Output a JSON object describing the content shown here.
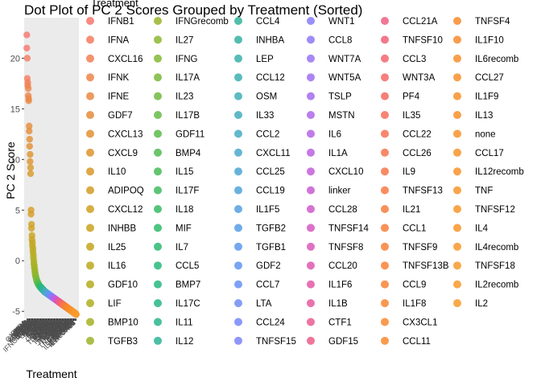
{
  "chart_data": {
    "type": "scatter",
    "title": "Dot Plot of PC 2 Scores Grouped by Treatment (Sorted)",
    "xlabel": "Treatment",
    "ylabel": "PC 2 Score",
    "ylim": [
      -5.7,
      24
    ],
    "yticks": [
      -5,
      0,
      5,
      10,
      15,
      20
    ],
    "grid": false,
    "legend_title": "Treatment",
    "legend_position": "right",
    "visible_x_tick_labels": [
      "IFNB1",
      "CXCL16",
      "IFNE",
      "IFNA"
    ],
    "series": [
      {
        "name": "IFNB1",
        "color": "#F8766D",
        "values": [
          22.3,
          21.0
        ]
      },
      {
        "name": "IFNA",
        "color": "#F67C5F",
        "values": [
          20.0,
          18.0
        ]
      },
      {
        "name": "CXCL16",
        "color": "#F27F54",
        "values": [
          17.6,
          17.3
        ]
      },
      {
        "name": "IFNK",
        "color": "#EE844A",
        "values": [
          17.0,
          16.3
        ]
      },
      {
        "name": "IFNE",
        "color": "#EA8842",
        "values": [
          16.0,
          15.8
        ]
      },
      {
        "name": "GDF7",
        "color": "#E68C3A",
        "values": [
          13.3,
          12.8
        ]
      },
      {
        "name": "CXCL13",
        "color": "#E29033",
        "values": [
          12.0,
          11.3
        ]
      },
      {
        "name": "CXCL9",
        "color": "#DE942D",
        "values": [
          10.5,
          9.8
        ]
      },
      {
        "name": "IL10",
        "color": "#D99828",
        "values": [
          9.2,
          8.6
        ]
      },
      {
        "name": "ADIPOQ",
        "color": "#D49C24",
        "values": [
          5.0,
          4.6
        ]
      },
      {
        "name": "CXCL12",
        "color": "#CFA021",
        "values": [
          3.6,
          3.2
        ]
      },
      {
        "name": "INHBB",
        "color": "#C9A31F",
        "values": [
          2.5,
          2.1
        ]
      },
      {
        "name": "IL25",
        "color": "#C3A61E",
        "values": [
          1.8,
          1.5
        ]
      },
      {
        "name": "IL16",
        "color": "#BCA91E",
        "values": [
          1.2,
          0.9
        ]
      },
      {
        "name": "GDF10",
        "color": "#B5AC1F",
        "values": [
          0.6,
          0.3
        ]
      },
      {
        "name": "LIF",
        "color": "#AEAF21",
        "values": [
          0.0,
          -0.3
        ]
      },
      {
        "name": "BMP10",
        "color": "#A6B124",
        "values": [
          -0.5,
          -0.7
        ]
      },
      {
        "name": "TGFB3",
        "color": "#9EB328",
        "values": [
          -0.9,
          -1.1
        ]
      },
      {
        "name": "IFNGrecomb",
        "color": "#96B52C",
        "values": [
          -1.2,
          -1.4
        ]
      },
      {
        "name": "IL27",
        "color": "#8DB731",
        "values": [
          -1.5,
          -1.6
        ]
      },
      {
        "name": "IFNG",
        "color": "#84B836",
        "values": [
          -1.7,
          -1.8
        ]
      },
      {
        "name": "IL17A",
        "color": "#7AB93B",
        "values": [
          -1.9,
          -2.0
        ]
      },
      {
        "name": "IL23",
        "color": "#70BA40",
        "values": [
          -2.0,
          -2.1
        ]
      },
      {
        "name": "IL17B",
        "color": "#66BB45",
        "values": [
          -2.1,
          -2.2
        ]
      },
      {
        "name": "GDF11",
        "color": "#5CBB4A",
        "values": [
          -2.2,
          -2.3
        ]
      },
      {
        "name": "BMP4",
        "color": "#52BB50",
        "values": [
          -2.3,
          -2.4
        ]
      },
      {
        "name": "IL15",
        "color": "#48BB56",
        "values": [
          -2.4,
          -2.4
        ]
      },
      {
        "name": "IL17F",
        "color": "#3FBB5C",
        "values": [
          -2.5,
          -2.5
        ]
      },
      {
        "name": "IL18",
        "color": "#37BA63",
        "values": [
          -2.5,
          -2.6
        ]
      },
      {
        "name": "MIF",
        "color": "#30BA6A",
        "values": [
          -2.6,
          -2.6
        ]
      },
      {
        "name": "IL7",
        "color": "#2BB971",
        "values": [
          -2.6,
          -2.7
        ]
      },
      {
        "name": "CCL5",
        "color": "#28B878",
        "values": [
          -2.7,
          -2.7
        ]
      },
      {
        "name": "BMP7",
        "color": "#27B77F",
        "values": [
          -2.7,
          -2.8
        ]
      },
      {
        "name": "IL17C",
        "color": "#28B686",
        "values": [
          -2.8,
          -2.8
        ]
      },
      {
        "name": "IL11",
        "color": "#2AB58D",
        "values": [
          -2.8,
          -2.9
        ]
      },
      {
        "name": "IL12",
        "color": "#2DB494",
        "values": [
          -2.9,
          -2.9
        ]
      },
      {
        "name": "CCL4",
        "color": "#31B39B",
        "values": [
          -2.9,
          -3.0
        ]
      },
      {
        "name": "INHBA",
        "color": "#35B2A2",
        "values": [
          -3.0,
          -3.0
        ]
      },
      {
        "name": "LEP",
        "color": "#39B1A9",
        "values": [
          -3.0,
          -3.1
        ]
      },
      {
        "name": "CCL12",
        "color": "#3DB0B0",
        "values": [
          -3.1,
          -3.1
        ]
      },
      {
        "name": "OSM",
        "color": "#41AFB7",
        "values": [
          -3.1,
          -3.1
        ]
      },
      {
        "name": "IL33",
        "color": "#44ADBE",
        "values": [
          -3.1,
          -3.2
        ]
      },
      {
        "name": "CCL2",
        "color": "#47ABC5",
        "values": [
          -3.2,
          -3.2
        ]
      },
      {
        "name": "CXCL11",
        "color": "#4AA9CC",
        "values": [
          -3.2,
          -3.2
        ]
      },
      {
        "name": "CCL25",
        "color": "#4DA6D3",
        "values": [
          -3.2,
          -3.3
        ]
      },
      {
        "name": "CCL19",
        "color": "#50A3DA",
        "values": [
          -3.3,
          -3.3
        ]
      },
      {
        "name": "IL1F5",
        "color": "#53A0E0",
        "values": [
          -3.3,
          -3.3
        ]
      },
      {
        "name": "TGFB2",
        "color": "#579DE6",
        "values": [
          -3.3,
          -3.4
        ]
      },
      {
        "name": "TGFB1",
        "color": "#5B99EB",
        "values": [
          -3.4,
          -3.4
        ]
      },
      {
        "name": "GDF2",
        "color": "#6095F0",
        "values": [
          -3.4,
          -3.4
        ]
      },
      {
        "name": "CCL7",
        "color": "#6691F3",
        "values": [
          -3.4,
          -3.5
        ]
      },
      {
        "name": "LTA",
        "color": "#6D8CF6",
        "values": [
          -3.5,
          -3.5
        ]
      },
      {
        "name": "CCL24",
        "color": "#7587F8",
        "values": [
          -3.5,
          -3.5
        ]
      },
      {
        "name": "TNFSF15",
        "color": "#7D82F9",
        "values": [
          -3.5,
          -3.6
        ]
      },
      {
        "name": "WNT1",
        "color": "#857DF9",
        "values": [
          -3.6,
          -3.6
        ]
      },
      {
        "name": "CCL8",
        "color": "#8E78F8",
        "values": [
          -3.6,
          -3.6
        ]
      },
      {
        "name": "WNT7A",
        "color": "#9673F6",
        "values": [
          -3.6,
          -3.7
        ]
      },
      {
        "name": "WNT5A",
        "color": "#9E6FF3",
        "values": [
          -3.7,
          -3.7
        ]
      },
      {
        "name": "TSLP",
        "color": "#A66BF0",
        "values": [
          -3.7,
          -3.7
        ]
      },
      {
        "name": "MSTN",
        "color": "#AE67EB",
        "values": [
          -3.7,
          -3.8
        ]
      },
      {
        "name": "IL6",
        "color": "#B564E6",
        "values": [
          -3.8,
          -3.8
        ]
      },
      {
        "name": "IL1A",
        "color": "#BC61E0",
        "values": [
          -3.8,
          -3.8
        ]
      },
      {
        "name": "CXCL10",
        "color": "#C35ED9",
        "values": [
          -3.8,
          -3.9
        ]
      },
      {
        "name": "linker",
        "color": "#C95CD2",
        "values": [
          -3.9,
          -3.9
        ]
      },
      {
        "name": "CCL28",
        "color": "#CF5ACA",
        "values": [
          -3.9,
          -3.9
        ]
      },
      {
        "name": "TNFSF14",
        "color": "#D559C1",
        "values": [
          -3.9,
          -4.0
        ]
      },
      {
        "name": "TNFSF8",
        "color": "#DA58B8",
        "values": [
          -4.0,
          -4.0
        ]
      },
      {
        "name": "CCL20",
        "color": "#DF58AF",
        "values": [
          -4.0,
          -4.0
        ]
      },
      {
        "name": "IL1F6",
        "color": "#E358A6",
        "values": [
          -4.0,
          -4.1
        ]
      },
      {
        "name": "IL1B",
        "color": "#E7599D",
        "values": [
          -4.1,
          -4.1
        ]
      },
      {
        "name": "CTF1",
        "color": "#EA5B93",
        "values": [
          -4.1,
          -4.1
        ]
      },
      {
        "name": "GDF15",
        "color": "#EC5D8A",
        "values": [
          -4.1,
          -4.2
        ]
      },
      {
        "name": "CCL21A",
        "color": "#EE5F81",
        "values": [
          -4.2,
          -4.2
        ]
      },
      {
        "name": "TNFSF10",
        "color": "#F06278",
        "values": [
          -4.2,
          -4.2
        ]
      },
      {
        "name": "CCL3",
        "color": "#F26570",
        "values": [
          -4.2,
          -4.3
        ]
      },
      {
        "name": "WNT3A",
        "color": "#F36868",
        "values": [
          -4.3,
          -4.3
        ]
      },
      {
        "name": "PF4",
        "color": "#F46B61",
        "values": [
          -4.3,
          -4.3
        ]
      },
      {
        "name": "IL35",
        "color": "#F56E5A",
        "values": [
          -4.3,
          -4.4
        ]
      },
      {
        "name": "CCL22",
        "color": "#F67153",
        "values": [
          -4.4,
          -4.4
        ]
      },
      {
        "name": "CCL26",
        "color": "#F7744D",
        "values": [
          -4.4,
          -4.4
        ]
      },
      {
        "name": "IL9",
        "color": "#F77748",
        "values": [
          -4.4,
          -4.5
        ]
      },
      {
        "name": "TNFSF13",
        "color": "#F87943",
        "values": [
          -4.5,
          -4.5
        ]
      },
      {
        "name": "IL21",
        "color": "#F87C3F",
        "values": [
          -4.5,
          -4.5
        ]
      },
      {
        "name": "CCL1",
        "color": "#F87E3B",
        "values": [
          -4.5,
          -4.6
        ]
      },
      {
        "name": "TNFSF9",
        "color": "#F88038",
        "values": [
          -4.6,
          -4.6
        ]
      },
      {
        "name": "TNFSF13B",
        "color": "#F88235",
        "values": [
          -4.6,
          -4.6
        ]
      },
      {
        "name": "CCL9",
        "color": "#F88433",
        "values": [
          -4.6,
          -4.7
        ]
      },
      {
        "name": "IL1F8",
        "color": "#F88631",
        "values": [
          -4.7,
          -4.7
        ]
      },
      {
        "name": "CX3CL1",
        "color": "#F8882F",
        "values": [
          -4.7,
          -4.7
        ]
      },
      {
        "name": "CCL11",
        "color": "#F8892E",
        "values": [
          -4.7,
          -4.8
        ]
      },
      {
        "name": "TNFSF4",
        "color": "#F88B2D",
        "values": [
          -4.8,
          -4.8
        ]
      },
      {
        "name": "IL1F10",
        "color": "#F88C2C",
        "values": [
          -4.8,
          -4.8
        ]
      },
      {
        "name": "IL6recomb",
        "color": "#F88E2B",
        "values": [
          -4.8,
          -4.9
        ]
      },
      {
        "name": "CCL27",
        "color": "#F88F2B",
        "values": [
          -4.9,
          -4.9
        ]
      },
      {
        "name": "IL1F9",
        "color": "#F8902A",
        "values": [
          -4.9,
          -4.9
        ]
      },
      {
        "name": "IL13",
        "color": "#F8912A",
        "values": [
          -4.9,
          -5.0
        ]
      },
      {
        "name": "none",
        "color": "#F8922A",
        "values": [
          -5.0,
          -5.0
        ]
      },
      {
        "name": "CCL17",
        "color": "#F8932A",
        "values": [
          -5.0,
          -5.0
        ]
      },
      {
        "name": "IL12recomb",
        "color": "#F8942A",
        "values": [
          -5.0,
          -5.1
        ]
      },
      {
        "name": "TNF",
        "color": "#F8952A",
        "values": [
          -5.1,
          -5.1
        ]
      },
      {
        "name": "TNFSF12",
        "color": "#F8962A",
        "values": [
          -5.1,
          -5.1
        ]
      },
      {
        "name": "IL4",
        "color": "#F8972A",
        "values": [
          -5.1,
          -5.2
        ]
      },
      {
        "name": "IL4recomb",
        "color": "#F8982A",
        "values": [
          -5.2,
          -5.2
        ]
      },
      {
        "name": "TNFSF18",
        "color": "#F8992A",
        "values": [
          -5.2,
          -5.2
        ]
      },
      {
        "name": "IL2recomb",
        "color": "#F89A2A",
        "values": [
          -5.2,
          -5.3
        ]
      },
      {
        "name": "IL2",
        "color": "#F89B2A",
        "values": [
          -5.3,
          -5.3
        ]
      }
    ]
  }
}
